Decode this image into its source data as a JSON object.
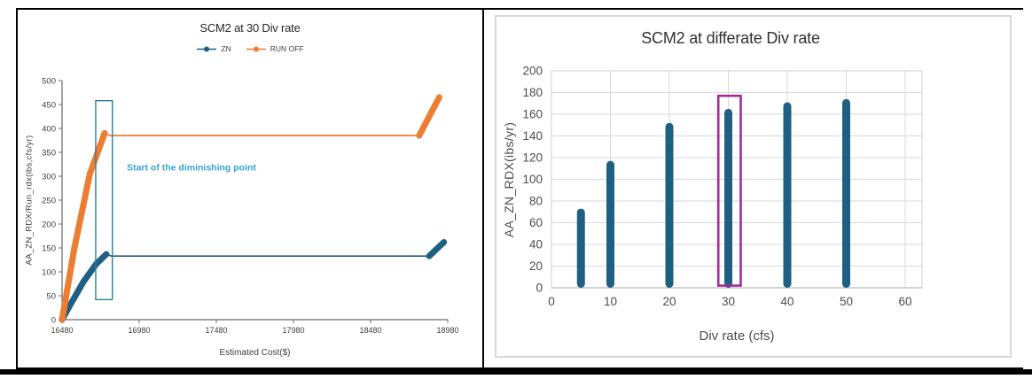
{
  "page": {
    "background": "#ffffff",
    "table_border_color": "#000000",
    "chart_frame_color": "#d9d9d9"
  },
  "chart_data": [
    {
      "type": "line",
      "title": "SCM2 at 30 Div rate",
      "xlabel": "Estimated Cost($)",
      "ylabel": "AA_ZN_RDX/Run_rdx(ibs,cfs/yr)",
      "xlim": [
        16480,
        18980
      ],
      "ylim": [
        0,
        500
      ],
      "xticks": [
        16480,
        16980,
        17480,
        17980,
        18480,
        18980
      ],
      "yticks": [
        0,
        50,
        100,
        150,
        200,
        250,
        300,
        350,
        400,
        450,
        500
      ],
      "grid": false,
      "legend_position": "top",
      "series": [
        {
          "name": "ZN",
          "color": "#1f6082",
          "points": [
            [
              16480,
              0
            ],
            [
              16540,
              35
            ],
            [
              16620,
              80
            ],
            [
              16700,
              116
            ],
            [
              16767,
              137
            ],
            [
              16800,
              133
            ],
            [
              18860,
              133
            ],
            [
              18955,
              162
            ]
          ]
        },
        {
          "name": "RUN OFF",
          "color": "#ed7d31",
          "points": [
            [
              16480,
              0
            ],
            [
              16560,
              150
            ],
            [
              16660,
              305
            ],
            [
              16756,
              390
            ],
            [
              16790,
              385
            ],
            [
              18795,
              385
            ],
            [
              18925,
              465
            ]
          ]
        }
      ],
      "annotation_text": {
        "label": "Start of the diminishing point",
        "x": 16900,
        "y": 312,
        "color": "#3aa2d8"
      },
      "annotation_box": {
        "x1": 16698,
        "x2": 16806,
        "y1": 42,
        "y2": 458,
        "color": "#2e7f9e"
      }
    },
    {
      "type": "scatter",
      "title": "SCM2 at differate Div rate",
      "xlabel": "Div rate (cfs)",
      "ylabel": "AA_ZN_RDX(ibs/yr)",
      "xlim": [
        0,
        60
      ],
      "ylim": [
        0,
        200
      ],
      "xticks": [
        0,
        10,
        20,
        30,
        40,
        50,
        60
      ],
      "yticks": [
        0,
        20,
        40,
        60,
        80,
        100,
        120,
        140,
        160,
        180,
        200
      ],
      "grid": true,
      "point_color": "#1f6082",
      "columns": [
        {
          "x": 5,
          "min": 0,
          "max": 73
        },
        {
          "x": 10,
          "min": 0,
          "max": 117
        },
        {
          "x": 20,
          "min": 0,
          "max": 152
        },
        {
          "x": 30,
          "min": 0,
          "max": 165
        },
        {
          "x": 40,
          "min": 0,
          "max": 171
        },
        {
          "x": 50,
          "min": 0,
          "max": 174
        }
      ],
      "highlight_box": {
        "x1": 28.3,
        "x2": 32.1,
        "y1": 2,
        "y2": 177,
        "color": "#a02b9b"
      }
    }
  ]
}
